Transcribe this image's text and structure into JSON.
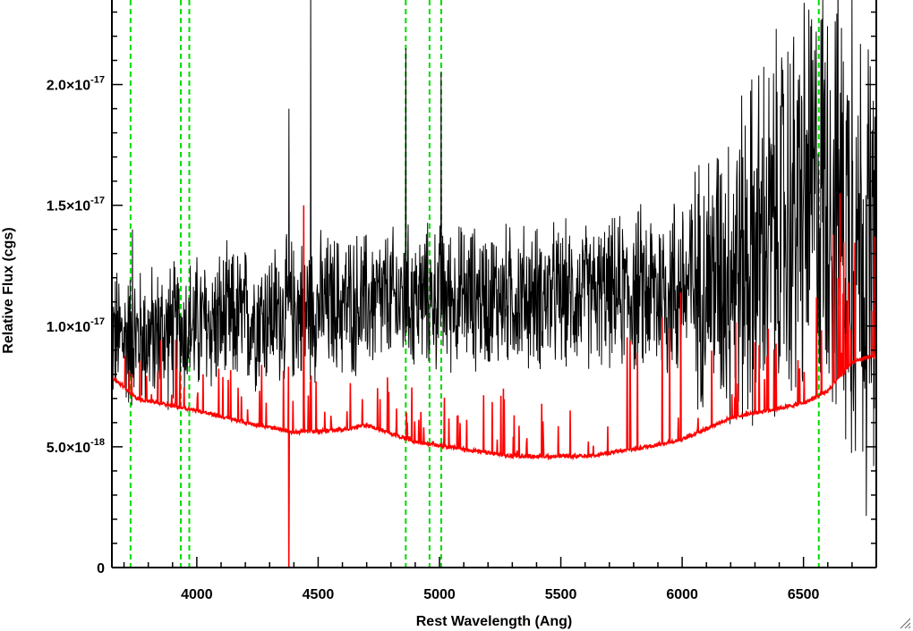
{
  "chart_data": {
    "type": "line",
    "title": "",
    "xlabel": "Rest Wavelength (Ang)",
    "ylabel": "Relative Flux (cgs)",
    "xlim": [
      3650,
      6800
    ],
    "ylim": [
      0,
      2.35e-17
    ],
    "x_ticks": [
      {
        "value": 4000,
        "label": "4000"
      },
      {
        "value": 4500,
        "label": "4500"
      },
      {
        "value": 5000,
        "label": "5000"
      },
      {
        "value": 5500,
        "label": "5500"
      },
      {
        "value": 6000,
        "label": "6000"
      },
      {
        "value": 6500,
        "label": "6500"
      }
    ],
    "y_ticks": [
      {
        "value": 0,
        "mantissa": "0",
        "exponent": ""
      },
      {
        "value": 5e-18,
        "mantissa": "5.0×10",
        "exponent": "-18"
      },
      {
        "value": 1e-17,
        "mantissa": "1.0×10",
        "exponent": "-17"
      },
      {
        "value": 1.5e-17,
        "mantissa": "1.5×10",
        "exponent": "-17"
      },
      {
        "value": 2e-17,
        "mantissa": "2.0×10",
        "exponent": "-17"
      }
    ],
    "x_minor_step": 100,
    "y_minor_step": 1e-18,
    "vertical_markers": [
      3727,
      3934,
      3969,
      4861,
      4959,
      5007,
      6563
    ],
    "series": [
      {
        "color": "#000000",
        "style": "noisy-spectrum",
        "continuum": [
          [
            3650,
            9.5e-18
          ],
          [
            3800,
            9.5e-18
          ],
          [
            4000,
            1e-17
          ],
          [
            4500,
            1.08e-17
          ],
          [
            5000,
            1.12e-17
          ],
          [
            5500,
            1.12e-17
          ],
          [
            6000,
            1.15e-17
          ],
          [
            6300,
            1.3e-17
          ],
          [
            6600,
            1.6e-17
          ],
          [
            6800,
            1.2e-17
          ]
        ],
        "noise_amplitude": [
          [
            3650,
            3.5e-18
          ],
          [
            5700,
            3.5e-18
          ],
          [
            6000,
            5e-18
          ],
          [
            6300,
            9e-18
          ],
          [
            6800,
            1.2e-17
          ]
        ],
        "spikes": [
          [
            3735,
            1.4e-17
          ],
          [
            4380,
            1.9e-17
          ],
          [
            4470,
            2.45e-17
          ],
          [
            4861,
            2.15e-17
          ],
          [
            5007,
            2.05e-17
          ],
          [
            6700,
            2.4e-17
          ]
        ]
      },
      {
        "color": "#ff0000",
        "style": "error-spectrum",
        "continuum": [
          [
            3650,
            7.9e-18
          ],
          [
            3750,
            7e-18
          ],
          [
            4000,
            6.5e-18
          ],
          [
            4200,
            6e-18
          ],
          [
            4400,
            5.6e-18
          ],
          [
            4600,
            5.7e-18
          ],
          [
            4700,
            5.9e-18
          ],
          [
            4900,
            5.2e-18
          ],
          [
            5100,
            4.9e-18
          ],
          [
            5300,
            4.6e-18
          ],
          [
            5600,
            4.6e-18
          ],
          [
            5800,
            4.9e-18
          ],
          [
            6000,
            5.3e-18
          ],
          [
            6200,
            6.2e-18
          ],
          [
            6500,
            6.8e-18
          ],
          [
            6600,
            7.3e-18
          ],
          [
            6700,
            8.5e-18
          ],
          [
            6800,
            8.8e-18
          ]
        ],
        "spikes": [
          [
            4380,
            0
          ],
          [
            4440,
            1.5e-17
          ],
          [
            6650,
            1.55e-17
          ]
        ]
      }
    ]
  }
}
